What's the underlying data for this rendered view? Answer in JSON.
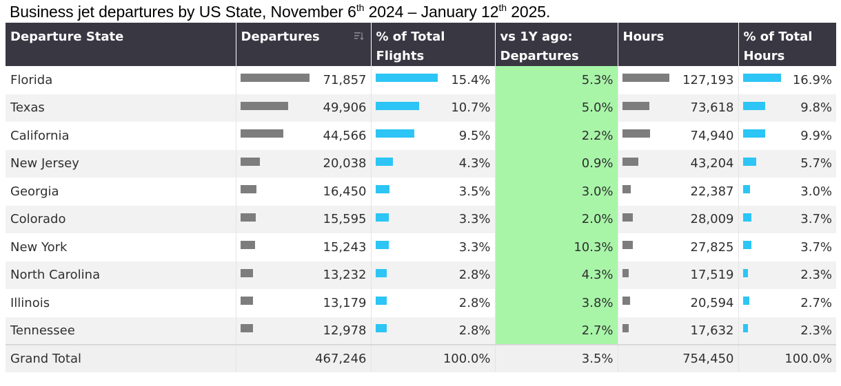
{
  "title": {
    "part1": "Business jet departures by US State, November 6",
    "sup1": "th",
    "part2": " 2024 – January 12",
    "sup2": "th",
    "part3": " 2025."
  },
  "headers": {
    "state": "Departure State",
    "departures": "Departures",
    "pct_flights_1": "% of Total",
    "pct_flights_2": "Flights",
    "vs_1": "vs 1Y ago:",
    "vs_2": "Departures",
    "hours": "Hours",
    "pct_hours_1": "% of Total",
    "pct_hours_2": "Hours"
  },
  "colors": {
    "header_bg": "#383742",
    "departures_bar": "#7d7d7d",
    "share_bar": "#2cc5f6",
    "highlight_column": "#a8f5a8"
  },
  "chart_data": {
    "type": "table",
    "columns": [
      "Departure State",
      "Departures",
      "% of Total Flights",
      "vs 1Y ago: Departures",
      "Hours",
      "% of Total Hours"
    ],
    "rows": [
      {
        "state": "Florida",
        "departures": 71857,
        "departures_text": "71,857",
        "pct_flights": 15.4,
        "pct_flights_text": "15.4%",
        "vs_1y": "5.3%",
        "hours": 127193,
        "hours_text": "127,193",
        "pct_hours": 16.9,
        "pct_hours_text": "16.9%"
      },
      {
        "state": "Texas",
        "departures": 49906,
        "departures_text": "49,906",
        "pct_flights": 10.7,
        "pct_flights_text": "10.7%",
        "vs_1y": "5.0%",
        "hours": 73618,
        "hours_text": "73,618",
        "pct_hours": 9.8,
        "pct_hours_text": "9.8%"
      },
      {
        "state": "California",
        "departures": 44566,
        "departures_text": "44,566",
        "pct_flights": 9.5,
        "pct_flights_text": "9.5%",
        "vs_1y": "2.2%",
        "hours": 74940,
        "hours_text": "74,940",
        "pct_hours": 9.9,
        "pct_hours_text": "9.9%"
      },
      {
        "state": "New Jersey",
        "departures": 20038,
        "departures_text": "20,038",
        "pct_flights": 4.3,
        "pct_flights_text": "4.3%",
        "vs_1y": "0.9%",
        "hours": 43204,
        "hours_text": "43,204",
        "pct_hours": 5.7,
        "pct_hours_text": "5.7%"
      },
      {
        "state": "Georgia",
        "departures": 16450,
        "departures_text": "16,450",
        "pct_flights": 3.5,
        "pct_flights_text": "3.5%",
        "vs_1y": "3.0%",
        "hours": 22387,
        "hours_text": "22,387",
        "pct_hours": 3.0,
        "pct_hours_text": "3.0%"
      },
      {
        "state": "Colorado",
        "departures": 15595,
        "departures_text": "15,595",
        "pct_flights": 3.3,
        "pct_flights_text": "3.3%",
        "vs_1y": "2.0%",
        "hours": 28009,
        "hours_text": "28,009",
        "pct_hours": 3.7,
        "pct_hours_text": "3.7%"
      },
      {
        "state": "New York",
        "departures": 15243,
        "departures_text": "15,243",
        "pct_flights": 3.3,
        "pct_flights_text": "3.3%",
        "vs_1y": "10.3%",
        "hours": 27825,
        "hours_text": "27,825",
        "pct_hours": 3.7,
        "pct_hours_text": "3.7%"
      },
      {
        "state": "North Carolina",
        "departures": 13232,
        "departures_text": "13,232",
        "pct_flights": 2.8,
        "pct_flights_text": "2.8%",
        "vs_1y": "4.3%",
        "hours": 17519,
        "hours_text": "17,519",
        "pct_hours": 2.3,
        "pct_hours_text": "2.3%"
      },
      {
        "state": "Illinois",
        "departures": 13179,
        "departures_text": "13,179",
        "pct_flights": 2.8,
        "pct_flights_text": "2.8%",
        "vs_1y": "3.8%",
        "hours": 20594,
        "hours_text": "20,594",
        "pct_hours": 2.7,
        "pct_hours_text": "2.7%"
      },
      {
        "state": "Tennessee",
        "departures": 12978,
        "departures_text": "12,978",
        "pct_flights": 2.8,
        "pct_flights_text": "2.8%",
        "vs_1y": "2.7%",
        "hours": 17632,
        "hours_text": "17,632",
        "pct_hours": 2.3,
        "pct_hours_text": "2.3%"
      }
    ],
    "total": {
      "label": "Grand Total",
      "departures_text": "467,246",
      "pct_flights_text": "100.0%",
      "vs_1y": "3.5%",
      "hours_text": "754,450",
      "pct_hours_text": "100.0%"
    }
  }
}
